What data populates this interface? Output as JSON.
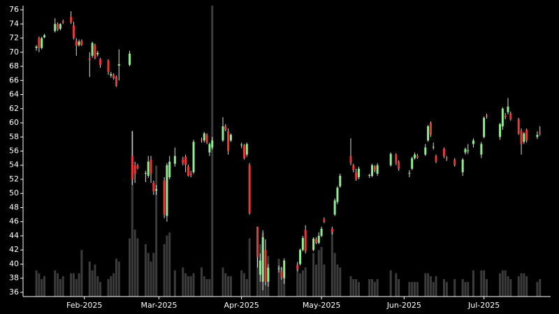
{
  "chart_data": {
    "type": "candlestick",
    "x": [
      "2025-01-14",
      "2025-01-15",
      "2025-01-16",
      "2025-01-17",
      "2025-01-21",
      "2025-01-22",
      "2025-01-23",
      "2025-01-24",
      "2025-01-27",
      "2025-01-28",
      "2025-01-29",
      "2025-01-30",
      "2025-01-31",
      "2025-02-03",
      "2025-02-04",
      "2025-02-05",
      "2025-02-06",
      "2025-02-07",
      "2025-02-10",
      "2025-02-11",
      "2025-02-12",
      "2025-02-13",
      "2025-02-14",
      "2025-02-18",
      "2025-02-19",
      "2025-02-20",
      "2025-02-21",
      "2025-02-24",
      "2025-02-25",
      "2025-02-26",
      "2025-02-27",
      "2025-02-28",
      "2025-03-03",
      "2025-03-04",
      "2025-03-05",
      "2025-03-07",
      "2025-03-10",
      "2025-03-11",
      "2025-03-12",
      "2025-03-13",
      "2025-03-14",
      "2025-03-17",
      "2025-03-18",
      "2025-03-19",
      "2025-03-20",
      "2025-03-21",
      "2025-03-25",
      "2025-03-26",
      "2025-03-27",
      "2025-03-28",
      "2025-04-01",
      "2025-04-02",
      "2025-04-03",
      "2025-04-04",
      "2025-04-07",
      "2025-04-08",
      "2025-04-09",
      "2025-04-10",
      "2025-04-11",
      "2025-04-15",
      "2025-04-16",
      "2025-04-17",
      "2025-04-22",
      "2025-04-23",
      "2025-04-24",
      "2025-04-25",
      "2025-04-28",
      "2025-04-29",
      "2025-04-30",
      "2025-05-01",
      "2025-05-02",
      "2025-05-05",
      "2025-05-06",
      "2025-05-07",
      "2025-05-08",
      "2025-05-12",
      "2025-05-13",
      "2025-05-14",
      "2025-05-15",
      "2025-05-19",
      "2025-05-20",
      "2025-05-21",
      "2025-05-22",
      "2025-05-27",
      "2025-05-29",
      "2025-05-30",
      "2025-06-03",
      "2025-06-04",
      "2025-06-05",
      "2025-06-06",
      "2025-06-09",
      "2025-06-10",
      "2025-06-11",
      "2025-06-12",
      "2025-06-13",
      "2025-06-16",
      "2025-06-17",
      "2025-06-20",
      "2025-06-23",
      "2025-06-24",
      "2025-06-25",
      "2025-06-27",
      "2025-06-30",
      "2025-07-01",
      "2025-07-02",
      "2025-07-07",
      "2025-07-08",
      "2025-07-09",
      "2025-07-10",
      "2025-07-11",
      "2025-07-14",
      "2025-07-15",
      "2025-07-16",
      "2025-07-17",
      "2025-07-21",
      "2025-07-22"
    ],
    "open": [
      70.6,
      72.0,
      70.6,
      72.1,
      73.0,
      74.0,
      73.3,
      74.4,
      75.0,
      73.8,
      71.6,
      71.0,
      71.6,
      69.1,
      69.5,
      71.0,
      69.7,
      69.0,
      68.8,
      66.7,
      66.8,
      66.5,
      68.1,
      68.2,
      55.3,
      54.0,
      53.9,
      52.8,
      52.5,
      54.8,
      51.5,
      50.4,
      51.8,
      46.8,
      52.3,
      54.2,
      54.8,
      55.2,
      53.8,
      52.8,
      53.0,
      57.6,
      57.5,
      58.3,
      55.8,
      56.5,
      57.5,
      59.5,
      58.8,
      57.5,
      56.8,
      56.8,
      55.5,
      54.0,
      45.3,
      38.5,
      37.5,
      42.0,
      37.5,
      39.3,
      39.0,
      38.0,
      39.8,
      40.0,
      42.0,
      44.8,
      42.0,
      43.5,
      43.0,
      44.0,
      46.3,
      45.0,
      47.0,
      48.8,
      51.0,
      55.3,
      54.0,
      53.0,
      52.3,
      52.5,
      52.5,
      53.8,
      52.8,
      54.0,
      55.5,
      54.5,
      52.8,
      53.5,
      55.0,
      55.3,
      55.5,
      57.5,
      60.0,
      56.5,
      55.3,
      56.3,
      55.0,
      54.8,
      53.0,
      55.8,
      56.0,
      57.0,
      55.5,
      58.0,
      61.0,
      58.0,
      59.5,
      61.0,
      61.5,
      61.3,
      60.5,
      58.8,
      57.3,
      59.0,
      58.0,
      58.6
    ],
    "high": [
      71.0,
      72.2,
      72.2,
      72.6,
      74.8,
      74.2,
      74.1,
      74.6,
      75.8,
      74.3,
      72.0,
      71.8,
      71.8,
      70.0,
      71.5,
      71.2,
      70.2,
      69.2,
      69.0,
      67.2,
      67.0,
      66.7,
      70.4,
      70.2,
      58.8,
      54.5,
      54.2,
      53.2,
      55.3,
      55.3,
      51.8,
      51.2,
      52.3,
      54.3,
      55.3,
      56.5,
      55.2,
      55.5,
      54.1,
      53.2,
      57.6,
      57.9,
      58.7,
      58.5,
      57.2,
      58.0,
      60.8,
      59.8,
      59.2,
      58.5,
      57.2,
      57.0,
      57.2,
      54.3,
      45.3,
      41.5,
      44.8,
      43.5,
      40.0,
      39.8,
      39.6,
      40.8,
      40.3,
      42.2,
      44.0,
      45.5,
      43.8,
      43.8,
      44.5,
      45.3,
      46.6,
      45.3,
      49.3,
      51.0,
      52.8,
      57.8,
      54.2,
      53.5,
      53.8,
      52.8,
      54.2,
      54.0,
      54.3,
      55.8,
      55.7,
      54.7,
      53.3,
      55.2,
      55.8,
      55.6,
      57.0,
      59.7,
      60.2,
      57.2,
      55.5,
      56.5,
      55.3,
      55.0,
      55.0,
      56.5,
      57.0,
      57.8,
      57.3,
      60.9,
      61.3,
      60.0,
      62.2,
      61.4,
      63.5,
      61.6,
      60.7,
      59.2,
      58.7,
      59.2,
      58.8,
      59.5
    ],
    "low": [
      70.2,
      70.0,
      70.4,
      72.0,
      72.8,
      73.0,
      73.1,
      74.0,
      74.0,
      71.8,
      69.5,
      70.8,
      70.9,
      66.5,
      69.2,
      69.0,
      69.4,
      67.8,
      66.8,
      66.4,
      66.1,
      65.1,
      66.0,
      68.0,
      51.2,
      51.5,
      53.4,
      51.6,
      52.2,
      51.5,
      49.8,
      49.8,
      46.5,
      46.0,
      52.0,
      53.8,
      54.0,
      53.0,
      52.4,
      52.3,
      52.8,
      57.2,
      57.2,
      57.0,
      55.3,
      56.2,
      57.3,
      58.8,
      55.5,
      57.3,
      56.4,
      54.8,
      55.2,
      47.0,
      39.5,
      37.5,
      36.3,
      37.0,
      36.8,
      38.8,
      37.8,
      37.2,
      39.0,
      39.8,
      41.8,
      41.5,
      41.8,
      42.8,
      42.8,
      43.8,
      45.8,
      44.2,
      46.8,
      48.5,
      50.8,
      54.0,
      53.0,
      51.8,
      52.0,
      52.2,
      52.3,
      53.0,
      52.5,
      53.8,
      54.0,
      53.2,
      52.3,
      53.3,
      54.8,
      54.9,
      55.3,
      57.3,
      58.0,
      56.2,
      54.3,
      55.0,
      54.6,
      53.8,
      52.5,
      55.5,
      55.6,
      56.5,
      55.0,
      57.8,
      60.6,
      57.6,
      59.0,
      60.5,
      61.2,
      60.3,
      58.3,
      55.5,
      57.0,
      57.2,
      57.7,
      58.2
    ],
    "close": [
      70.8,
      70.6,
      72.0,
      72.4,
      74.0,
      73.2,
      74.0,
      74.2,
      74.2,
      72.0,
      70.9,
      71.5,
      71.0,
      68.9,
      71.3,
      69.2,
      69.9,
      68.2,
      67.2,
      66.9,
      66.3,
      65.2,
      68.3,
      69.8,
      52.0,
      52.8,
      53.6,
      52.9,
      54.5,
      52.8,
      50.3,
      50.6,
      47.0,
      54.0,
      54.5,
      55.3,
      54.3,
      54.0,
      52.5,
      52.6,
      57.3,
      57.5,
      58.5,
      57.2,
      57.0,
      57.5,
      59.5,
      59.0,
      56.0,
      58.3,
      56.9,
      55.0,
      57.0,
      47.2,
      41.0,
      40.5,
      43.8,
      37.5,
      39.5,
      39.4,
      38.0,
      40.5,
      39.3,
      42.0,
      43.7,
      41.8,
      43.6,
      43.0,
      44.0,
      45.0,
      46.0,
      44.5,
      49.0,
      50.8,
      52.5,
      54.3,
      53.3,
      52.0,
      53.5,
      52.6,
      54.0,
      53.3,
      54.0,
      55.6,
      54.3,
      53.5,
      52.9,
      55.0,
      55.5,
      55.1,
      56.5,
      59.5,
      58.3,
      56.6,
      54.5,
      55.3,
      54.9,
      54.0,
      54.8,
      56.3,
      56.1,
      57.5,
      57.0,
      60.7,
      60.9,
      59.8,
      62.0,
      60.8,
      62.3,
      60.5,
      58.5,
      57.0,
      58.5,
      57.5,
      58.3,
      58.5
    ],
    "volume": [
      9,
      8,
      6,
      7,
      9,
      8,
      6,
      7,
      8,
      8,
      6,
      8,
      16,
      12,
      9,
      11,
      7,
      5,
      6,
      7,
      8,
      13,
      12,
      20,
      57,
      23,
      20,
      18,
      15,
      12,
      15,
      45,
      18,
      21,
      22,
      9,
      10,
      8,
      7,
      7,
      8,
      10,
      7,
      6,
      6,
      100,
      10,
      8,
      7,
      7,
      9,
      8,
      6,
      20,
      18,
      18,
      22,
      15,
      14,
      13,
      10,
      9,
      11,
      8,
      9,
      10,
      15,
      11,
      16,
      17,
      11,
      23,
      15,
      11,
      10,
      7,
      6,
      6,
      5,
      6,
      6,
      5,
      6,
      9,
      8,
      6,
      5,
      5,
      5,
      5,
      8,
      8,
      7,
      5,
      7,
      6,
      5,
      6,
      6,
      5,
      5,
      9,
      9,
      9,
      6,
      8,
      9,
      9,
      7,
      6,
      7,
      8,
      8,
      7,
      5,
      6
    ],
    "up_color": "#90ee90",
    "down_color": "#e83838",
    "wick_color": "#dddddd",
    "volume_color": "#3c3c3c",
    "xlim": [
      "2025-01-09",
      "2025-07-26"
    ],
    "xticks": [
      {
        "value": "2025-02-01",
        "label": "Feb-2025"
      },
      {
        "value": "2025-03-01",
        "label": "Mar-2025"
      },
      {
        "value": "2025-04-01",
        "label": "Apr-2025"
      },
      {
        "value": "2025-05-01",
        "label": "May-2025"
      },
      {
        "value": "2025-06-01",
        "label": "Jun-2025"
      },
      {
        "value": "2025-07-01",
        "label": "Jul-2025"
      }
    ],
    "ylim": [
      35.4,
      76.6
    ],
    "yticks": [
      36,
      38,
      40,
      42,
      44,
      46,
      48,
      50,
      52,
      54,
      56,
      58,
      60,
      62,
      64,
      66,
      68,
      70,
      72,
      74,
      76
    ],
    "y2lim": [
      0,
      100
    ]
  }
}
